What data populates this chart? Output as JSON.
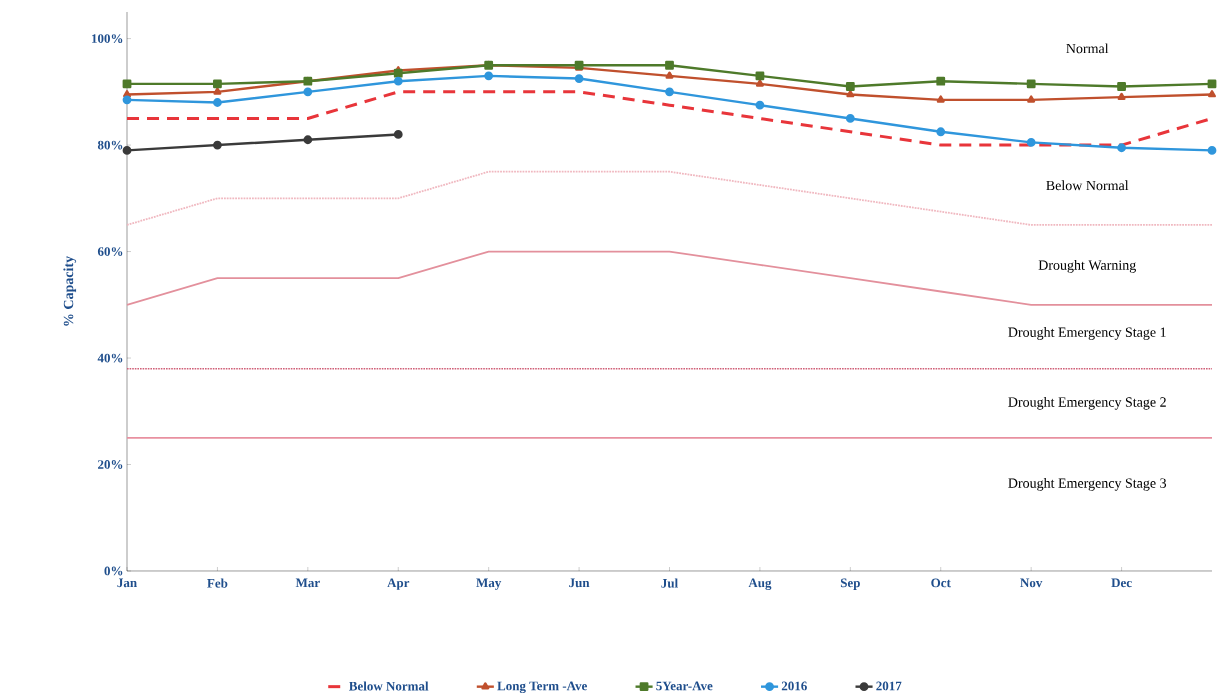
{
  "chart_data": {
    "type": "line",
    "ylabel": "% Capacity",
    "categories": [
      "Jan",
      "Feb",
      "Mar",
      "Apr",
      "May",
      "Jun",
      "Jul",
      "Aug",
      "Sep",
      "Oct",
      "Nov",
      "Dec",
      null
    ],
    "ylim": [
      0,
      105
    ],
    "yticks": [
      {
        "value": 0,
        "label": "0%"
      },
      {
        "value": 20,
        "label": "20%"
      },
      {
        "value": 40,
        "label": "40%"
      },
      {
        "value": 60,
        "label": "60%"
      },
      {
        "value": 80,
        "label": "80%"
      },
      {
        "value": 100,
        "label": "100%"
      }
    ],
    "grid": false,
    "legend": "bottom",
    "series": [
      {
        "color": "#f0b8c0",
        "line_style": "dotted",
        "marker": "none",
        "values": [
          65,
          70,
          70,
          70,
          75,
          75,
          75,
          72.5,
          70,
          67.5,
          65,
          65,
          65
        ]
      },
      {
        "color": "#e3909c",
        "line_style": "solid",
        "marker": "none",
        "values": [
          50,
          55,
          55,
          55,
          60,
          60,
          60,
          57.5,
          55,
          52.5,
          50,
          50,
          50
        ]
      },
      {
        "name": "Below Normal",
        "color": "#e8353a",
        "line_style": "dashed",
        "marker": "none",
        "values": [
          85,
          85,
          85,
          90,
          90,
          90,
          87.5,
          85,
          82.5,
          80,
          80,
          80,
          85
        ]
      },
      {
        "name": "Long Term -Ave",
        "color": "#c0502d",
        "line_style": "solid",
        "marker": "triangle",
        "values": [
          89.5,
          90,
          92,
          94,
          95,
          94.5,
          93,
          91.5,
          89.5,
          88.5,
          88.5,
          89,
          89.5
        ]
      },
      {
        "name": "5Year-Ave",
        "color": "#4e7a2a",
        "line_style": "solid",
        "marker": "square",
        "values": [
          91.5,
          91.5,
          92,
          93.5,
          95,
          95,
          95,
          93,
          91,
          92,
          91.5,
          91,
          91.5
        ]
      },
      {
        "name": "2016",
        "color": "#2f96dc",
        "line_style": "solid",
        "marker": "circle",
        "values": [
          88.5,
          88,
          90,
          92,
          93,
          92.5,
          90,
          87.5,
          85,
          82.5,
          80.5,
          79.5,
          79
        ]
      },
      {
        "name": "2017",
        "color": "#3a3a3a",
        "line_style": "solid",
        "marker": "circle",
        "values": [
          79,
          80,
          81,
          82,
          null,
          null,
          null,
          null,
          null,
          null,
          null,
          null,
          null
        ]
      }
    ],
    "ref_lines": [
      {
        "axis": "y",
        "value": 38,
        "color": "#d06078",
        "line_style": "dotted"
      },
      {
        "axis": "y",
        "value": 25,
        "color": "#e890a0",
        "line_style": "solid"
      }
    ],
    "annotations": [
      "Normal",
      "Below Normal",
      "Drought  Warning",
      "Drought Emergency Stage 1",
      "Drought Emergency Stage 2",
      "Drought Emergency Stage 3"
    ]
  }
}
